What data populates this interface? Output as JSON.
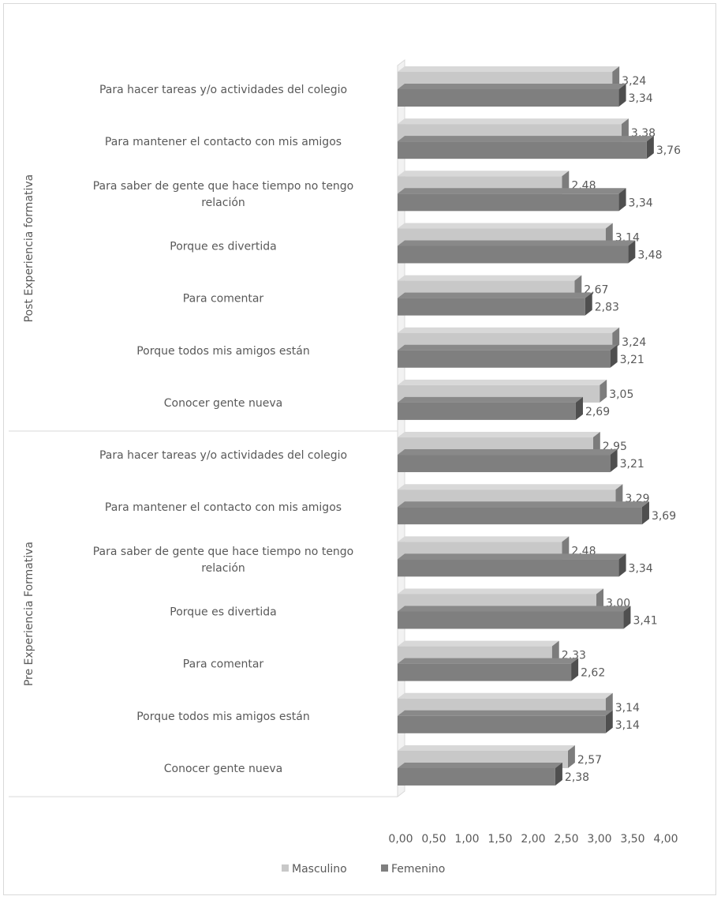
{
  "chart_data": {
    "type": "bar",
    "orientation": "horizontal",
    "style": "3d-clustered",
    "legend_position": "bottom",
    "grid": false,
    "xlim": [
      0,
      4
    ],
    "x_ticks": [
      "0,00",
      "0,50",
      "1,00",
      "1,50",
      "2,00",
      "2,50",
      "3,00",
      "3,50",
      "4,00"
    ],
    "series": [
      {
        "name": "Masculino",
        "color": "#c8c8c8"
      },
      {
        "name": "Femenino",
        "color": "#7f7f7f"
      }
    ],
    "groups": [
      {
        "label": "Post Experiencia formativa",
        "categories": [
          {
            "label": [
              "Para hacer tareas y/o actividades del colegio"
            ],
            "values": [
              3.24,
              3.34
            ],
            "display": [
              "3,24",
              "3,34"
            ]
          },
          {
            "label": [
              "Para mantener el contacto con mis amigos"
            ],
            "values": [
              3.38,
              3.76
            ],
            "display": [
              "3,38",
              "3,76"
            ]
          },
          {
            "label": [
              "Para saber  de gente que hace tiempo no tengo",
              "relación"
            ],
            "values": [
              2.48,
              3.34
            ],
            "display": [
              "2,48",
              "3,34"
            ]
          },
          {
            "label": [
              "Porque es divertida"
            ],
            "values": [
              3.14,
              3.48
            ],
            "display": [
              "3,14",
              "3,48"
            ]
          },
          {
            "label": [
              "Para comentar"
            ],
            "values": [
              2.67,
              2.83
            ],
            "display": [
              "2,67",
              "2,83"
            ]
          },
          {
            "label": [
              "Porque todos mis amigos están"
            ],
            "values": [
              3.24,
              3.21
            ],
            "display": [
              "3,24",
              "3,21"
            ]
          },
          {
            "label": [
              "Conocer gente nueva"
            ],
            "values": [
              3.05,
              2.69
            ],
            "display": [
              "3,05",
              "2,69"
            ]
          }
        ]
      },
      {
        "label": "Pre Experiencia Formativa",
        "categories": [
          {
            "label": [
              "Para hacer tareas y/o actividades del colegio"
            ],
            "values": [
              2.95,
              3.21
            ],
            "display": [
              "2,95",
              "3,21"
            ]
          },
          {
            "label": [
              "Para mantener el contacto con mis amigos"
            ],
            "values": [
              3.29,
              3.69
            ],
            "display": [
              "3,29",
              "3,69"
            ]
          },
          {
            "label": [
              "Para saber  de gente que hace tiempo no tengo",
              "relación"
            ],
            "values": [
              2.48,
              3.34
            ],
            "display": [
              "2,48",
              "3,34"
            ]
          },
          {
            "label": [
              "Porque es divertida"
            ],
            "values": [
              3.0,
              3.41
            ],
            "display": [
              "3,00",
              "3,41"
            ]
          },
          {
            "label": [
              "Para comentar"
            ],
            "values": [
              2.33,
              2.62
            ],
            "display": [
              "2,33",
              "2,62"
            ]
          },
          {
            "label": [
              "Porque todos mis amigos están"
            ],
            "values": [
              3.14,
              3.14
            ],
            "display": [
              "3,14",
              "3,14"
            ]
          },
          {
            "label": [
              "Conocer gente nueva"
            ],
            "values": [
              2.57,
              2.38
            ],
            "display": [
              "2,57",
              "2,38"
            ]
          }
        ]
      }
    ]
  }
}
